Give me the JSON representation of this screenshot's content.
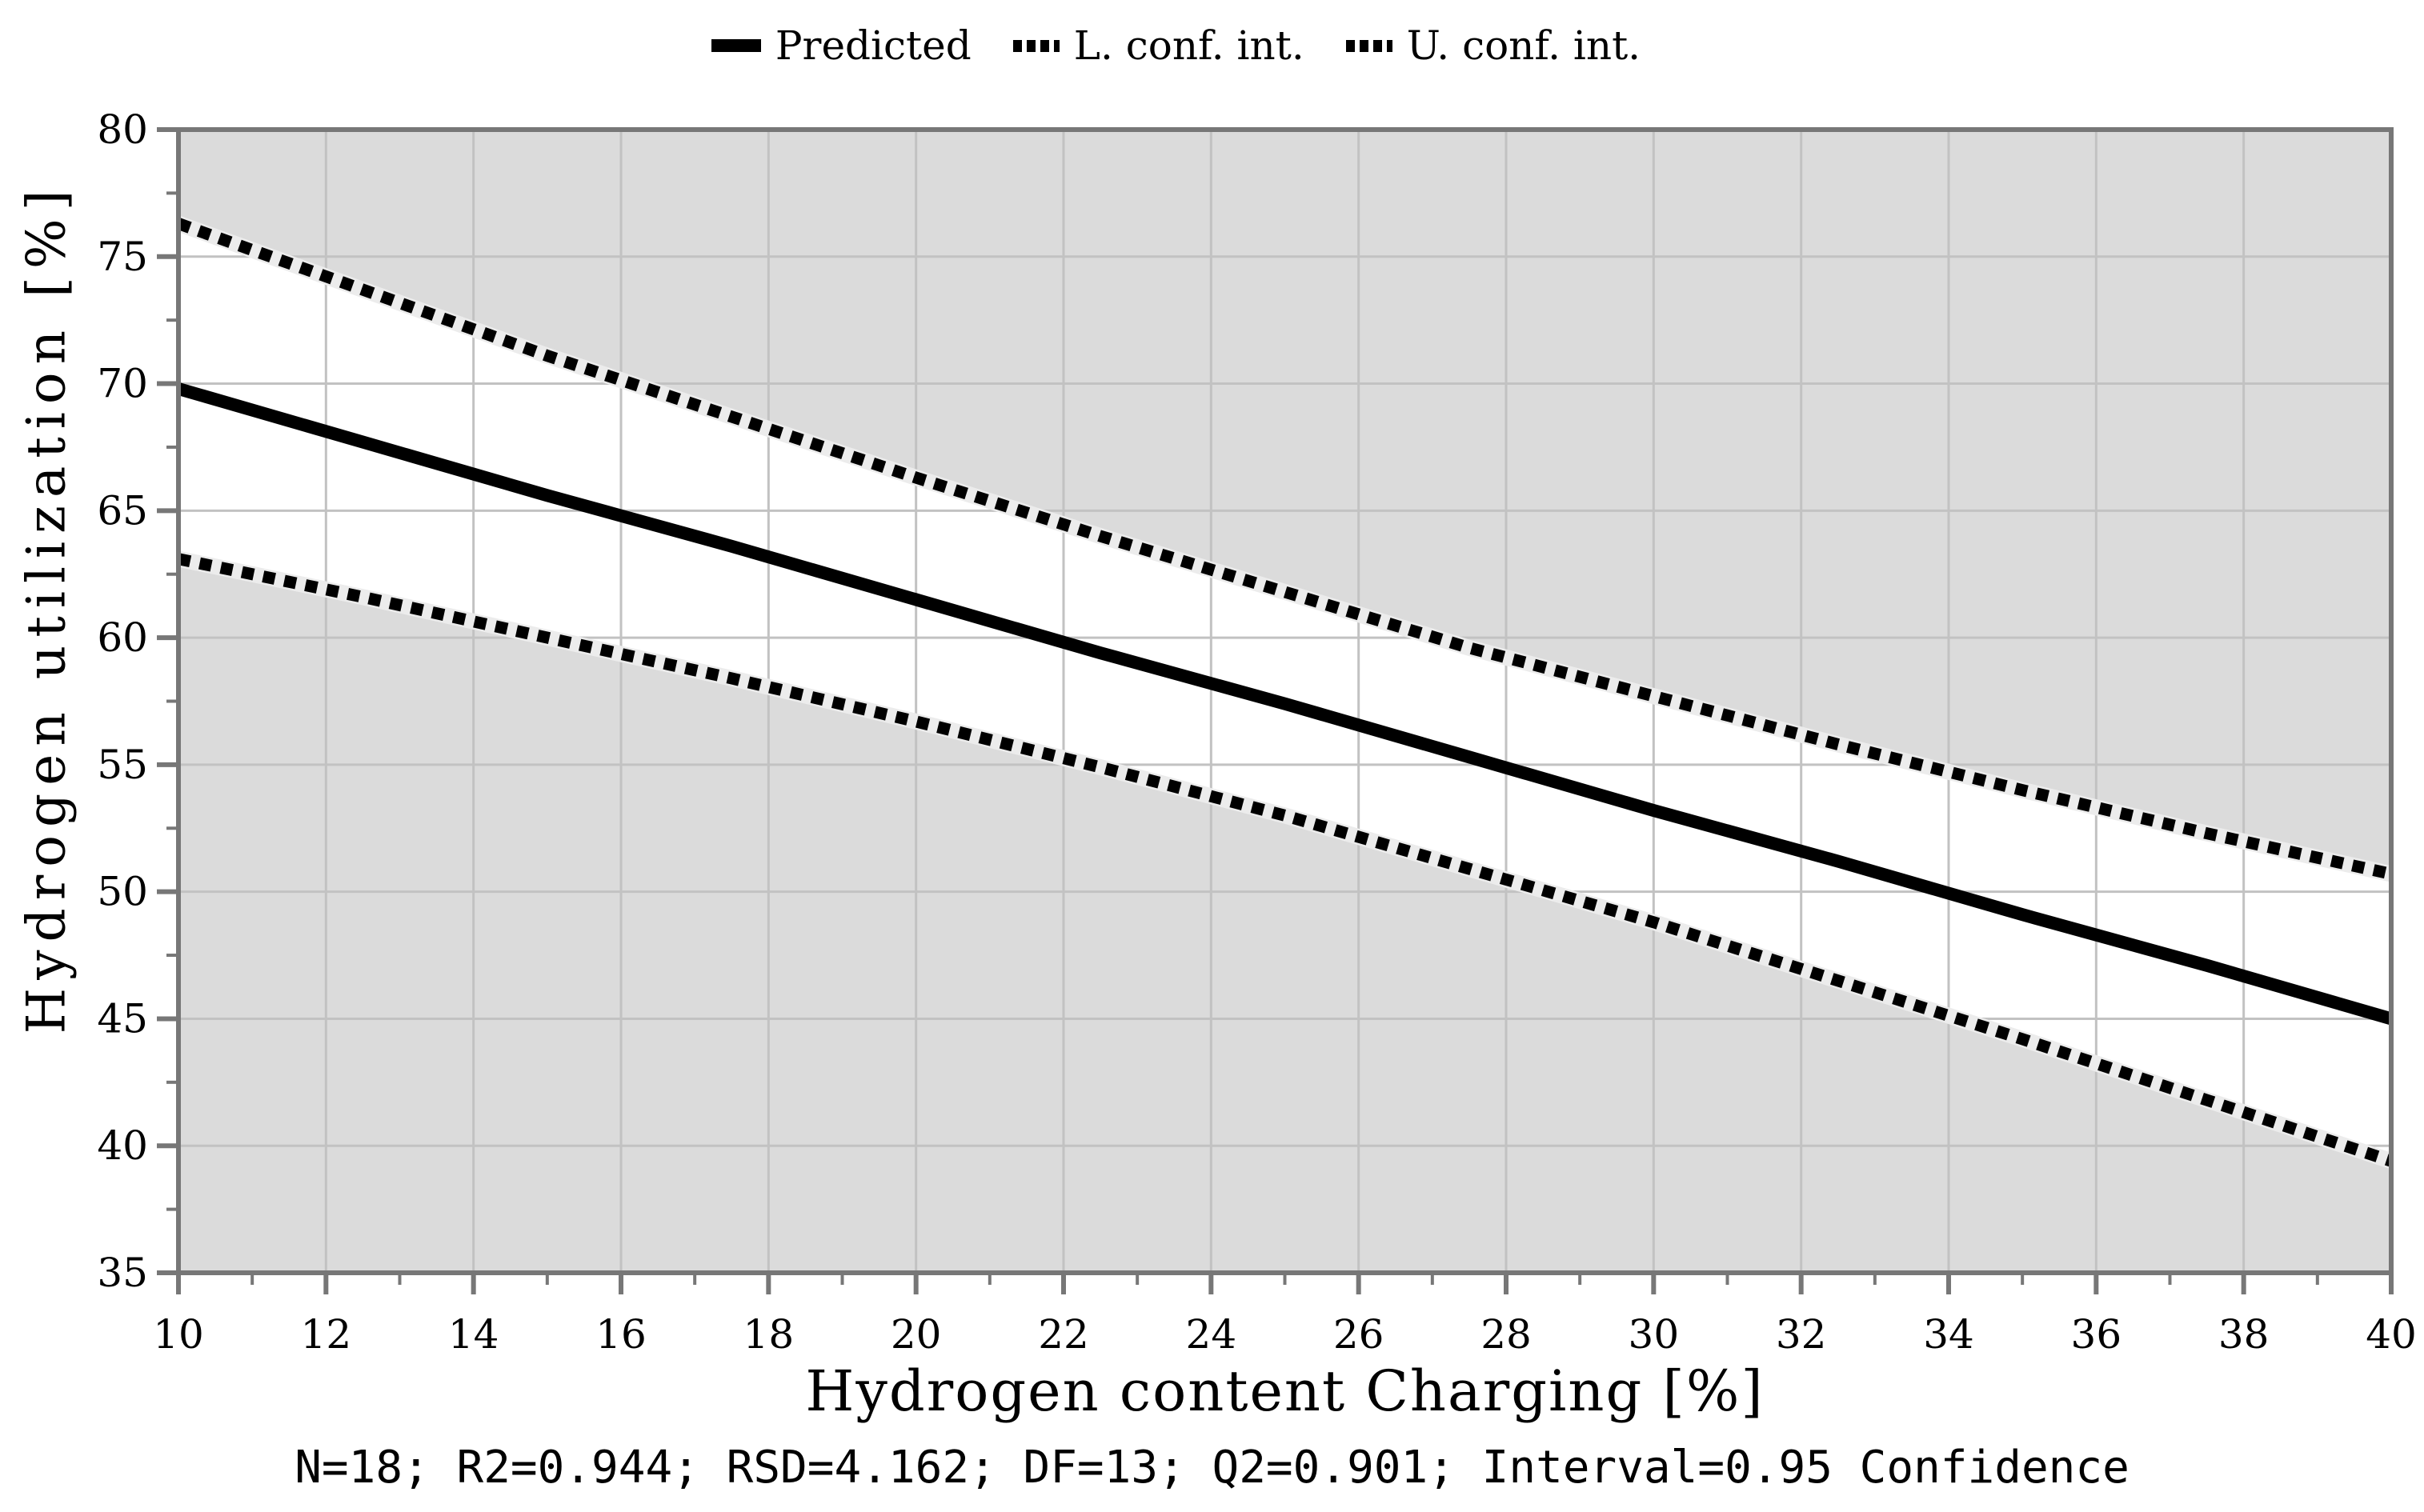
{
  "page": {
    "background": "#ffffff"
  },
  "legend": {
    "items": [
      {
        "label": "Predicted",
        "marker": "solid-line"
      },
      {
        "label": "L. conf. int.",
        "marker": "dotted-line"
      },
      {
        "label": "U. conf. int.",
        "marker": "dotted-line"
      }
    ]
  },
  "chart_data": {
    "type": "line",
    "title": "",
    "xlabel": "Hydrogen content Charging [%]",
    "ylabel": "Hydrogen utilization [%]",
    "caption": "N=18; R2=0.944; RSD=4.162; DF=13; Q2=0.901; Interval=0.95 Confidence",
    "xlim": [
      10,
      40
    ],
    "ylim": [
      35,
      80
    ],
    "x_major_ticks": [
      10,
      12,
      14,
      16,
      18,
      20,
      22,
      24,
      26,
      28,
      30,
      32,
      34,
      36,
      38,
      40
    ],
    "x_minor_ticks": [
      11,
      13,
      15,
      17,
      19,
      21,
      23,
      25,
      27,
      29,
      31,
      33,
      35,
      37,
      39
    ],
    "y_major_ticks": [
      35,
      40,
      45,
      50,
      55,
      60,
      65,
      70,
      75,
      80
    ],
    "y_minor_ticks": [
      37.5,
      42.5,
      47.5,
      52.5,
      57.5,
      62.5,
      67.5,
      72.5,
      77.5
    ],
    "grid": "major",
    "legend_position": "top-center",
    "x": [
      10,
      12.5,
      15,
      17.5,
      20,
      22.5,
      25,
      27.5,
      30,
      32.5,
      35,
      37.5,
      40
    ],
    "series": [
      {
        "name": "Predicted",
        "style": "solid",
        "color": "#000000",
        "values": [
          69.8,
          67.7,
          65.6,
          63.6,
          61.5,
          59.4,
          57.4,
          55.3,
          53.2,
          51.2,
          49.1,
          47.1,
          45.0
        ]
      },
      {
        "name": "L. conf. int.",
        "style": "dotted",
        "color": "#000000",
        "values": [
          63.1,
          61.6,
          60.0,
          58.4,
          56.7,
          54.9,
          53.0,
          50.9,
          48.8,
          46.5,
          44.2,
          41.8,
          39.4
        ]
      },
      {
        "name": "U. conf. int.",
        "style": "dotted",
        "color": "#000000",
        "values": [
          76.3,
          73.7,
          71.1,
          68.7,
          66.3,
          64.0,
          61.8,
          59.6,
          57.7,
          55.8,
          54.0,
          52.3,
          50.7
        ]
      }
    ],
    "band": {
      "between": [
        "L. conf. int.",
        "U. conf. int."
      ],
      "fill": "#ffffff"
    },
    "colors": {
      "plot_bg": "#dbdbdb",
      "band": "#ffffff",
      "grid": "#c2c2c2",
      "axis": "#777777",
      "halo": "#ececec",
      "line": "#000000"
    }
  }
}
